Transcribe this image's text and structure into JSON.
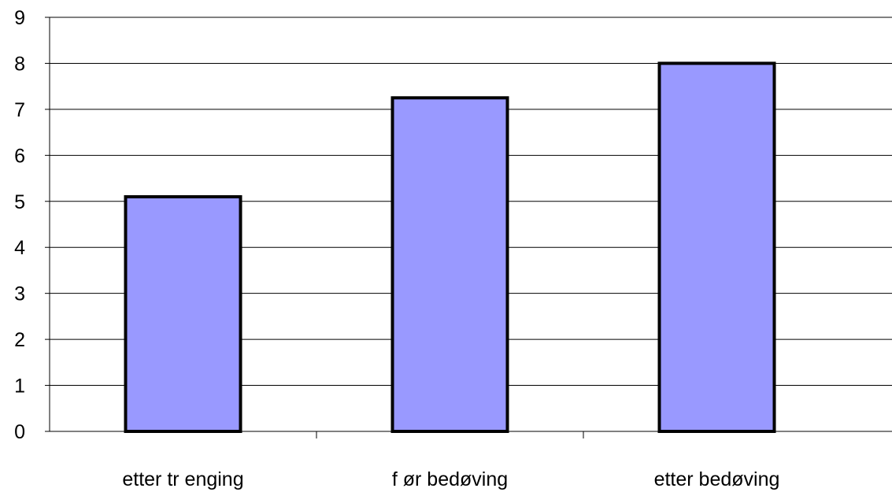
{
  "chart_data": {
    "type": "bar",
    "title": "",
    "xlabel": "",
    "ylabel": "",
    "categories": [
      "etter tr enging",
      "f ør bedøving",
      "etter bedøving"
    ],
    "values": [
      5.1,
      7.25,
      8.0
    ],
    "ylim": [
      0,
      9
    ],
    "yticks": [
      0,
      1,
      2,
      3,
      4,
      5,
      6,
      7,
      8,
      9
    ],
    "grid": true,
    "legend": "none",
    "colors": {
      "bar_fill": "#9999ff",
      "bar_stroke": "#000000",
      "grid": "#000000",
      "axis": "#000000"
    }
  }
}
